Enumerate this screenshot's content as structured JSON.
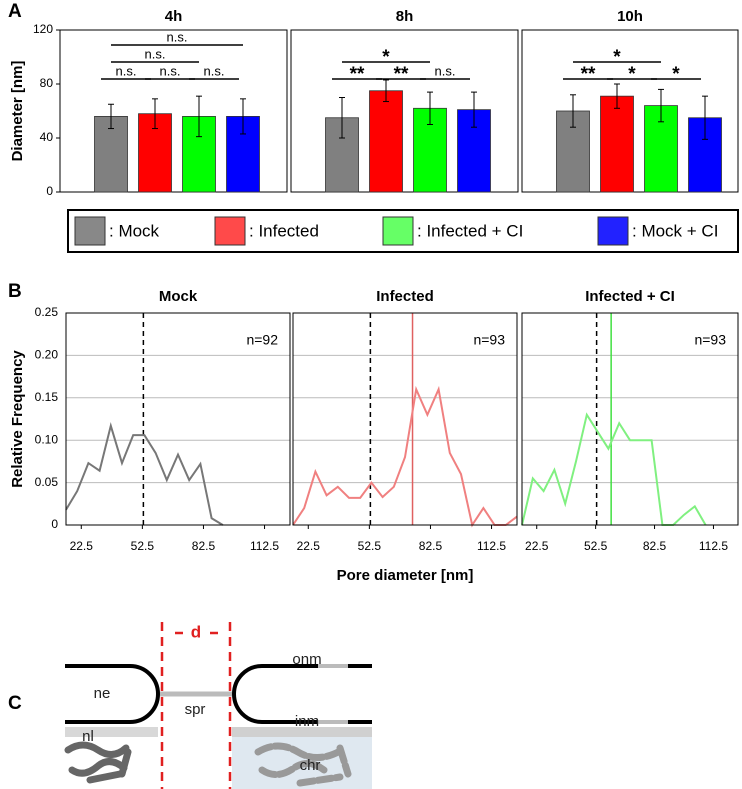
{
  "chart_data": [
    {
      "type": "bar",
      "panel": "A",
      "title": "4h",
      "ylabel": "Diameter  [nm]",
      "values": [
        56,
        58,
        56,
        56
      ],
      "errors": [
        9,
        11,
        15,
        13
      ],
      "colors": [
        "#808080",
        "#ff0000",
        "#00ff00",
        "#0000ff"
      ],
      "ylim": [
        0,
        120
      ],
      "yticks": [
        0,
        40,
        80,
        120
      ],
      "comparisons": [
        {
          "label": "n.s.",
          "between": [
            0,
            3
          ]
        },
        {
          "label": "n.s.",
          "between": [
            0,
            2
          ]
        },
        {
          "label": "n.s.",
          "between": [
            0,
            1
          ]
        },
        {
          "label": "n.s.",
          "between": [
            1,
            2
          ]
        },
        {
          "label": "n.s.",
          "between": [
            2,
            3
          ]
        }
      ]
    },
    {
      "type": "bar",
      "title": "8h",
      "values": [
        55,
        75,
        62,
        61
      ],
      "errors": [
        15,
        8,
        12,
        13
      ],
      "colors": [
        "#808080",
        "#ff0000",
        "#00ff00",
        "#0000ff"
      ],
      "ylim": [
        0,
        120
      ],
      "comparisons": [
        {
          "label": "*",
          "between": [
            0,
            2
          ]
        },
        {
          "label": "**",
          "between": [
            0,
            1
          ]
        },
        {
          "label": "**",
          "between": [
            1,
            2
          ]
        },
        {
          "label": "n.s.",
          "between": [
            2,
            3
          ]
        }
      ]
    },
    {
      "type": "bar",
      "title": "10h",
      "values": [
        60,
        71,
        64,
        55
      ],
      "errors": [
        12,
        9,
        12,
        16
      ],
      "colors": [
        "#808080",
        "#ff0000",
        "#00ff00",
        "#0000ff"
      ],
      "ylim": [
        0,
        120
      ],
      "comparisons": [
        {
          "label": "*",
          "between": [
            0,
            2
          ]
        },
        {
          "label": "**",
          "between": [
            0,
            1
          ]
        },
        {
          "label": "*",
          "between": [
            1,
            2
          ]
        },
        {
          "label": "*",
          "between": [
            2,
            3
          ]
        }
      ]
    },
    {
      "type": "line",
      "panel": "B",
      "title": "Mock",
      "ylabel": "Relative Frequency",
      "note": "n=92",
      "color": "#777777",
      "x": [
        15,
        20.5,
        26,
        31.5,
        37,
        42.5,
        48,
        53.5,
        59,
        64.5,
        70,
        75.5,
        81,
        86.5,
        92,
        97.5,
        103,
        108.5,
        114,
        119.5,
        125
      ],
      "values": [
        0.018,
        0.04,
        0.073,
        0.064,
        0.117,
        0.073,
        0.106,
        0.106,
        0.085,
        0.053,
        0.083,
        0.053,
        0.072,
        0.008,
        0,
        null,
        null,
        null,
        null,
        null,
        null
      ],
      "xlim": [
        15,
        125
      ],
      "xticks": [
        22.5,
        52.5,
        82.5,
        112.5
      ],
      "ylim": [
        0,
        0.25
      ],
      "yticks": [
        0,
        0.05,
        {
          "value": 0.1,
          "label": "0.10"
        },
        0.15,
        {
          "value": 0.2,
          "label": "0.20"
        },
        0.25
      ],
      "grid": true,
      "reference_lines": [
        {
          "x": 53,
          "style": "dashed",
          "color": "#000000"
        }
      ]
    },
    {
      "type": "line",
      "title": "Infected",
      "xlabel": "Pore diameter [nm]",
      "note": "n=93",
      "color": "#f08080",
      "x": [
        15,
        20.5,
        26,
        31.5,
        37,
        42.5,
        48,
        53.5,
        59,
        64.5,
        70,
        75.5,
        81,
        86.5,
        92,
        97.5,
        103,
        108.5,
        114,
        119.5,
        125
      ],
      "values": [
        0,
        0.02,
        0.063,
        0.035,
        0.045,
        0.032,
        0.032,
        0.05,
        0.033,
        0.045,
        0.08,
        0.16,
        0.13,
        0.16,
        0.085,
        0.06,
        0,
        0.02,
        0,
        0,
        0.01
      ],
      "xlim": [
        15,
        125
      ],
      "xticks": [
        22.5,
        52.5,
        82.5,
        112.5
      ],
      "ylim": [
        0,
        0.25
      ],
      "grid": true,
      "reference_lines": [
        {
          "x": 53,
          "style": "dashed",
          "color": "#000000"
        },
        {
          "x": 73.7,
          "style": "solid",
          "color": "#e06060"
        }
      ]
    },
    {
      "type": "line",
      "title": "Infected + CI",
      "note": "n=93",
      "color": "#80f080",
      "x": [
        15,
        20.5,
        26,
        31.5,
        37,
        42.5,
        48,
        53.5,
        59,
        64.5,
        70,
        75.5,
        81,
        86.5,
        92,
        97.5,
        103,
        108.5,
        114,
        119.5,
        125
      ],
      "values": [
        0,
        0.055,
        0.04,
        0.065,
        0.025,
        0.075,
        0.13,
        0.11,
        0.09,
        0.12,
        0.1,
        0.1,
        0.1,
        0,
        0,
        0.012,
        0.022,
        0,
        null,
        null,
        null
      ],
      "xlim": [
        15,
        125
      ],
      "xticks": [
        22.5,
        52.5,
        82.5,
        112.5
      ],
      "ylim": [
        0,
        0.25
      ],
      "grid": true,
      "reference_lines": [
        {
          "x": 53,
          "style": "dashed",
          "color": "#000000"
        },
        {
          "x": 60.4,
          "style": "solid",
          "color": "#40e040"
        }
      ]
    }
  ],
  "legend": {
    "items": [
      {
        "label": ": Mock",
        "color": "#888888"
      },
      {
        "label": ": Infected",
        "color": "#ff4a4a"
      },
      {
        "label": ": Infected + CI",
        "color": "#66ff66"
      },
      {
        "label": ": Mock + CI",
        "color": "#2222ff"
      }
    ]
  },
  "diagram": {
    "panel": "C",
    "distance": "d",
    "labels": {
      "ne": "ne",
      "spr": "spr",
      "onm": "onm",
      "inm": "inm",
      "nl": "nl",
      "chr": "chr"
    }
  }
}
